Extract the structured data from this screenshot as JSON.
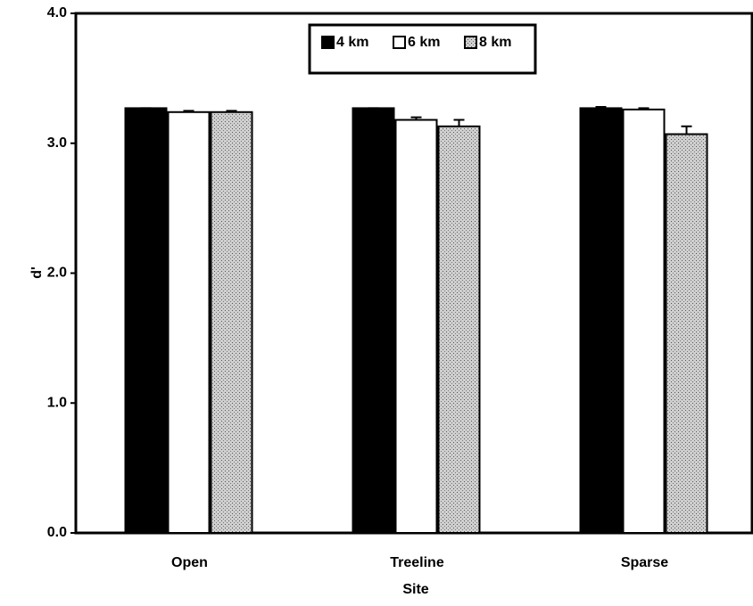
{
  "chart_data": {
    "type": "bar",
    "x_label": "Site",
    "y_label": "d'",
    "categories": [
      "Open",
      "Treeline",
      "Sparse"
    ],
    "series": [
      {
        "name": "4 km",
        "color": "#000000",
        "values": [
          3.27,
          3.27,
          3.27
        ],
        "errors": [
          0.0,
          0.0,
          0.01
        ]
      },
      {
        "name": "6 km",
        "color": "#ffffff",
        "values": [
          3.24,
          3.18,
          3.26
        ],
        "errors": [
          0.01,
          0.02,
          0.01
        ]
      },
      {
        "name": "8 km",
        "color": "#cfcfcf",
        "values": [
          3.24,
          3.13,
          3.07
        ],
        "errors": [
          0.01,
          0.05,
          0.06
        ]
      }
    ],
    "ylim": [
      0,
      4
    ],
    "yticks": [
      {
        "value": 0,
        "label": "0.0"
      },
      {
        "value": 1,
        "label": "1.0"
      },
      {
        "value": 2,
        "label": "2.0"
      },
      {
        "value": 3,
        "label": "3.0"
      },
      {
        "value": 4,
        "label": "4.0"
      }
    ],
    "legend": "top"
  }
}
